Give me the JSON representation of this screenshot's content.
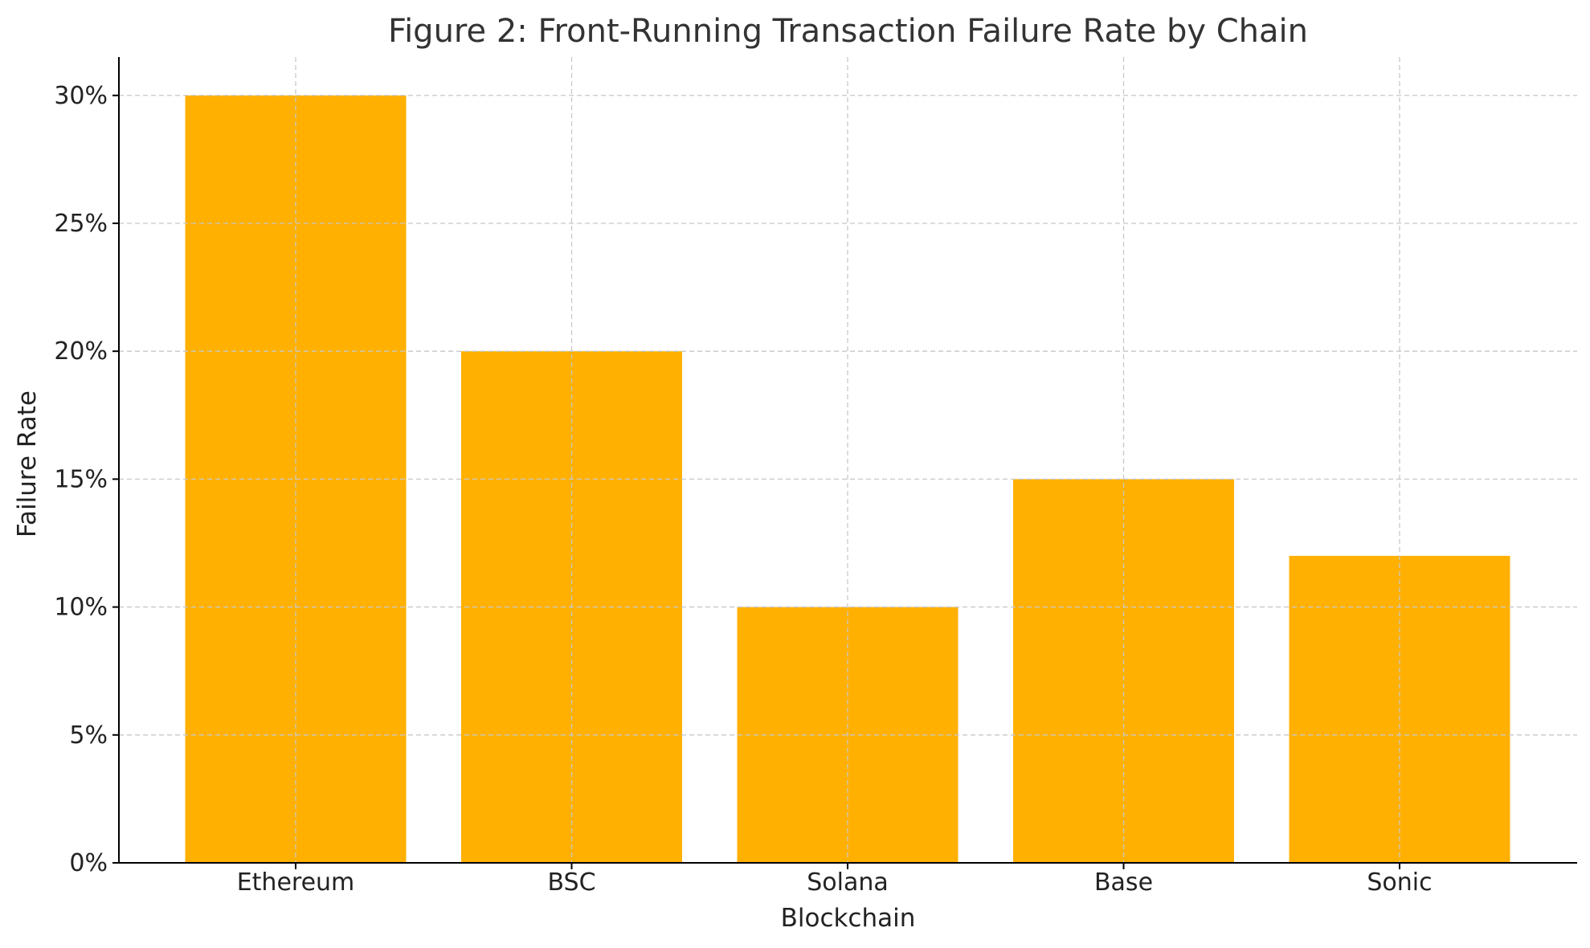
{
  "chart_data": {
    "type": "bar",
    "title": "Figure 2: Front-Running Transaction Failure Rate by Chain",
    "xlabel": "Blockchain",
    "ylabel": "Failure Rate",
    "categories": [
      "Ethereum",
      "BSC",
      "Solana",
      "Base",
      "Sonic"
    ],
    "values": [
      0.3,
      0.2,
      0.1,
      0.15,
      0.12
    ],
    "ylim": [
      0,
      0.315
    ],
    "yticks": [
      0,
      0.05,
      0.1,
      0.15,
      0.2,
      0.25,
      0.3
    ],
    "ytick_labels": [
      "0%",
      "5%",
      "10%",
      "15%",
      "20%",
      "25%",
      "30%"
    ],
    "grid": true,
    "bar_color": "#FFB000"
  }
}
